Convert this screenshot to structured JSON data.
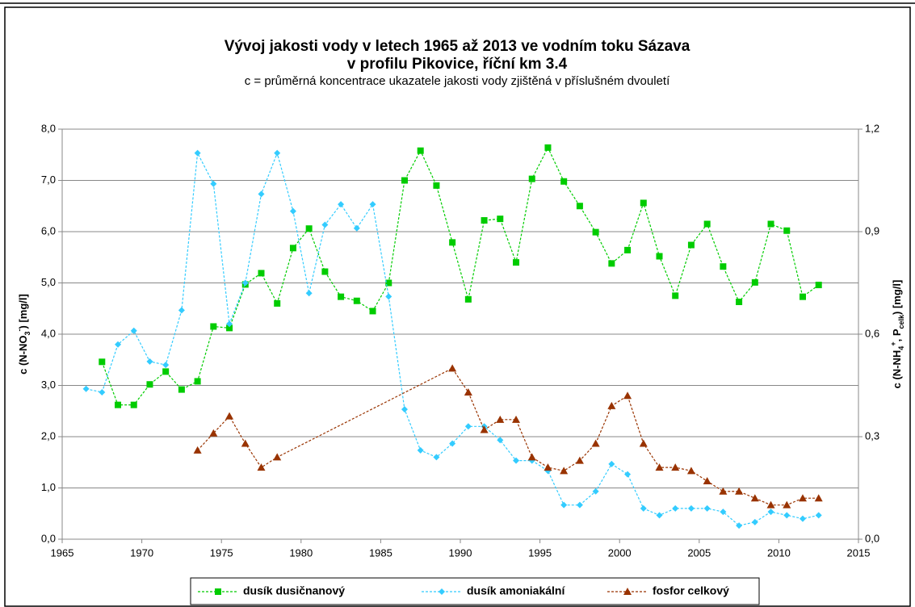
{
  "chart_data": {
    "type": "line",
    "title": [
      "Vývoj jakosti vody v letech 1965 až 2013 ve vodním toku Sázava",
      "v profilu Pikovice, říční km 3.4"
    ],
    "subtitle": "c = průměrná koncentrace ukazatele jakosti vody zjištěná v příslušném dvouletí",
    "ylabel": [
      {
        "text": "c (N-NO",
        "shift": ""
      },
      {
        "text": "3",
        "shift": "sub"
      },
      {
        "text": "-",
        "shift": "sup"
      },
      {
        "text": ") [mg/l]",
        "shift": ""
      }
    ],
    "y2label": [
      {
        "text": "c (N-NH",
        "shift": ""
      },
      {
        "text": "4",
        "shift": "sub"
      },
      {
        "text": "+",
        "shift": "sup"
      },
      {
        "text": ", P",
        "shift": ""
      },
      {
        "text": "celk",
        "shift": "sub"
      },
      {
        "text": ") [mg/l]",
        "shift": ""
      }
    ],
    "xlim": [
      1965,
      2015
    ],
    "xticks": [
      1965,
      1970,
      1975,
      1980,
      1985,
      1990,
      1995,
      2000,
      2005,
      2010,
      2015
    ],
    "ylim": [
      0,
      8
    ],
    "yticks": [
      {
        "value": 0,
        "label": "0,0"
      },
      {
        "value": 1,
        "label": "1,0"
      },
      {
        "value": 2,
        "label": "2,0"
      },
      {
        "value": 3,
        "label": "3,0"
      },
      {
        "value": 4,
        "label": "4,0"
      },
      {
        "value": 5,
        "label": "5,0"
      },
      {
        "value": 6,
        "label": "6,0"
      },
      {
        "value": 7,
        "label": "7,0"
      },
      {
        "value": 8,
        "label": "8,0"
      }
    ],
    "y2lim": [
      0,
      1.2
    ],
    "y2ticks": [
      {
        "value": 0,
        "label": "0,0"
      },
      {
        "value": 0.3,
        "label": "0,3"
      },
      {
        "value": 0.6,
        "label": "0,6"
      },
      {
        "value": 0.9,
        "label": "0,9"
      },
      {
        "value": 1.2,
        "label": "1,2"
      }
    ],
    "grid": true,
    "legend": "bottom",
    "series": [
      {
        "name": "dusík dusičnanový",
        "color": "#00cc00",
        "marker": "square",
        "axis": "y",
        "x": [
          1967.5,
          1968.5,
          1969.5,
          1970.5,
          1971.5,
          1972.5,
          1973.5,
          1974.5,
          1975.5,
          1976.5,
          1977.5,
          1978.5,
          1979.5,
          1980.5,
          1981.5,
          1982.5,
          1983.5,
          1984.5,
          1985.5,
          1986.5,
          1987.5,
          1988.5,
          1989.5,
          1990.5,
          1991.5,
          1992.5,
          1993.5,
          1994.5,
          1995.5,
          1996.5,
          1997.5,
          1998.5,
          1999.5,
          2000.5,
          2001.5,
          2002.5,
          2003.5,
          2004.5,
          2005.5,
          2006.5,
          2007.5,
          2008.5,
          2009.5,
          2010.5,
          2011.5,
          2012.5
        ],
        "values": [
          3.46,
          2.62,
          2.62,
          3.02,
          3.27,
          2.92,
          3.08,
          4.15,
          4.12,
          4.97,
          5.19,
          4.6,
          5.68,
          6.06,
          5.22,
          4.73,
          4.65,
          4.45,
          5.0,
          7.0,
          7.58,
          6.9,
          5.79,
          4.68,
          6.22,
          6.25,
          5.4,
          7.03,
          7.64,
          6.98,
          6.5,
          5.99,
          5.38,
          5.64,
          6.56,
          5.52,
          4.75,
          5.74,
          6.15,
          5.32,
          4.63,
          5.01,
          6.15,
          6.02,
          4.73,
          4.96
        ]
      },
      {
        "name": "dusík amoniakální",
        "color": "#33ccff",
        "marker": "diamond",
        "axis": "y2",
        "x": [
          1966.5,
          1967.5,
          1968.5,
          1969.5,
          1970.5,
          1971.5,
          1972.5,
          1973.5,
          1974.5,
          1975.5,
          1976.5,
          1977.5,
          1978.5,
          1979.5,
          1980.5,
          1981.5,
          1982.5,
          1983.5,
          1984.5,
          1985.5,
          1986.5,
          1987.5,
          1988.5,
          1989.5,
          1990.5,
          1991.5,
          1992.5,
          1993.5,
          1994.5,
          1995.5,
          1996.5,
          1997.5,
          1998.5,
          1999.5,
          2000.5,
          2001.5,
          2002.5,
          2003.5,
          2004.5,
          2005.5,
          2006.5,
          2007.5,
          2008.5,
          2009.5,
          2010.5,
          2011.5,
          2012.5
        ],
        "values": [
          0.44,
          0.43,
          0.57,
          0.61,
          0.52,
          0.51,
          0.67,
          1.13,
          1.04,
          0.63,
          0.75,
          1.01,
          1.13,
          0.96,
          0.72,
          0.92,
          0.98,
          0.91,
          0.98,
          0.71,
          0.38,
          0.26,
          0.24,
          0.28,
          0.33,
          0.33,
          0.29,
          0.23,
          0.23,
          0.2,
          0.1,
          0.1,
          0.14,
          0.22,
          0.19,
          0.09,
          0.07,
          0.09,
          0.09,
          0.09,
          0.08,
          0.04,
          0.05,
          0.08,
          0.07,
          0.06,
          0.07
        ]
      },
      {
        "name": "fosfor celkový",
        "color": "#993300",
        "marker": "triangle",
        "axis": "y2",
        "x": [
          1973.5,
          1974.5,
          1975.5,
          1976.5,
          1977.5,
          1978.5,
          1989.5,
          1990.5,
          1991.5,
          1992.5,
          1993.5,
          1994.5,
          1995.5,
          1996.5,
          1997.5,
          1998.5,
          1999.5,
          2000.5,
          2001.5,
          2002.5,
          2003.5,
          2004.5,
          2005.5,
          2006.5,
          2007.5,
          2008.5,
          2009.5,
          2010.5,
          2011.5,
          2012.5
        ],
        "values": [
          0.26,
          0.31,
          0.36,
          0.28,
          0.21,
          0.24,
          0.5,
          0.43,
          0.32,
          0.35,
          0.35,
          0.24,
          0.21,
          0.2,
          0.23,
          0.28,
          0.39,
          0.42,
          0.28,
          0.21,
          0.21,
          0.2,
          0.17,
          0.14,
          0.14,
          0.12,
          0.1,
          0.1,
          0.12,
          0.12
        ]
      }
    ]
  }
}
